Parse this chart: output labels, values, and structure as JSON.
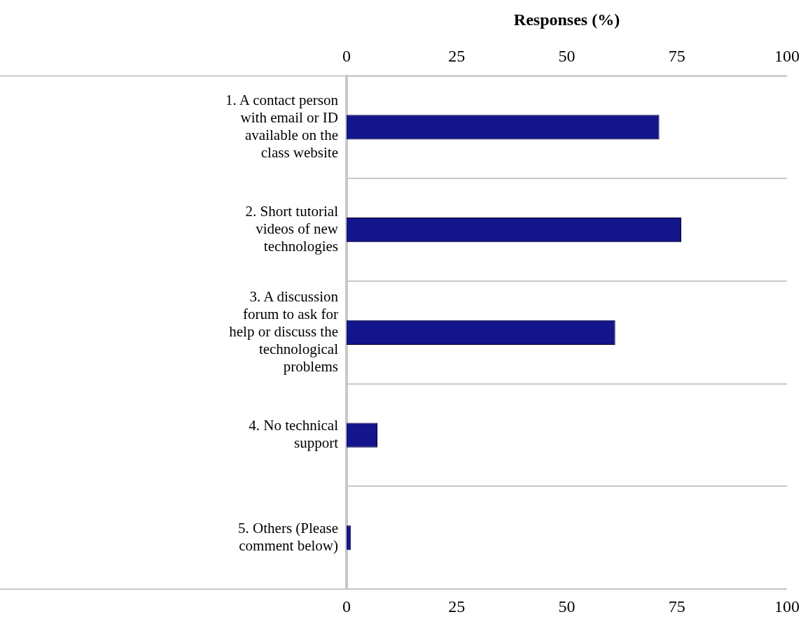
{
  "chart_data": {
    "type": "bar",
    "orientation": "horizontal",
    "x2label": "Responses (%)",
    "categories": [
      "1. A contact person with email or ID available on the class website",
      "2. Short tutorial videos of new technologies",
      "3. A discussion forum to ask for help or discuss the technological problems",
      "4. No technical support",
      "5. Others (Please comment below)"
    ],
    "values": [
      71,
      76,
      61,
      7,
      1
    ],
    "color": "#14148c",
    "xlim": [
      0,
      100
    ],
    "xticks": [
      0,
      25,
      50,
      75,
      100
    ],
    "x2lim": [
      0,
      100
    ],
    "x2ticks": [
      0,
      25,
      50,
      75,
      100
    ],
    "grid": "y",
    "legend": false
  }
}
